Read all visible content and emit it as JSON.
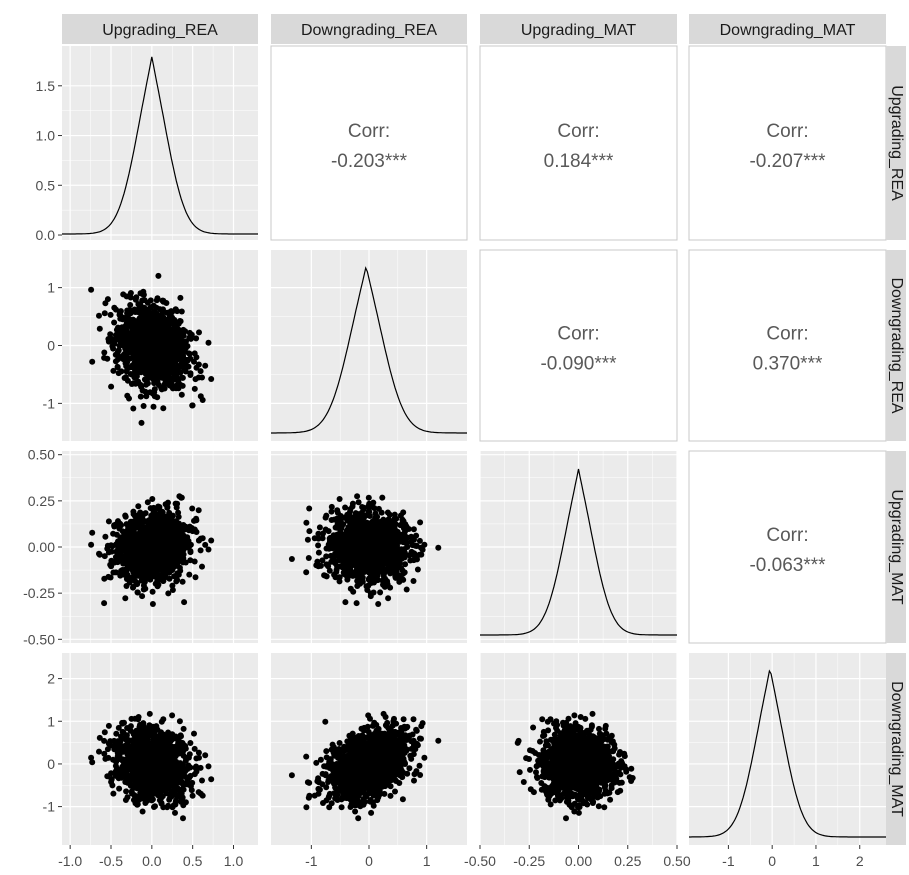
{
  "chart_data": {
    "type": "scatter-matrix",
    "variables": [
      "Upgrading_REA",
      "Downgrading_REA",
      "Upgrading_MAT",
      "Downgrading_MAT"
    ],
    "correlations": [
      {
        "row": 0,
        "col": 1,
        "label": "Corr:",
        "value": "-0.203***"
      },
      {
        "row": 0,
        "col": 2,
        "label": "Corr:",
        "value": "0.184***"
      },
      {
        "row": 0,
        "col": 3,
        "label": "Corr:",
        "value": "-0.207***"
      },
      {
        "row": 1,
        "col": 2,
        "label": "Corr:",
        "value": "-0.090***"
      },
      {
        "row": 1,
        "col": 3,
        "label": "Corr:",
        "value": "0.370***"
      },
      {
        "row": 2,
        "col": 3,
        "label": "Corr:",
        "value": "-0.063***"
      }
    ],
    "x_axes": [
      {
        "variable": "Upgrading_REA",
        "range": [
          -1.1,
          1.3
        ],
        "ticks": [
          -1.0,
          -0.5,
          0.0,
          0.5,
          1.0
        ],
        "tick_labels": [
          "-1.0",
          "-0.5",
          "0.0",
          "0.5",
          "1.0"
        ]
      },
      {
        "variable": "Downgrading_REA",
        "range": [
          -1.7,
          1.7
        ],
        "ticks": [
          -1,
          0,
          1
        ],
        "tick_labels": [
          "-1",
          "0",
          "1"
        ]
      },
      {
        "variable": "Upgrading_MAT",
        "range": [
          -0.5,
          0.5
        ],
        "ticks": [
          -0.5,
          -0.25,
          0.0,
          0.25,
          0.5
        ],
        "tick_labels": [
          "-0.50",
          "-0.25",
          "0.00",
          "0.25",
          "0.50"
        ]
      },
      {
        "variable": "Downgrading_MAT",
        "range": [
          -1.9,
          2.6
        ],
        "ticks": [
          -1,
          0,
          1,
          2
        ],
        "tick_labels": [
          "-1",
          "0",
          "1",
          "2"
        ]
      }
    ],
    "y_axes": [
      {
        "variable": "Upgrading_REA",
        "range": [
          -0.05,
          1.9
        ],
        "ticks": [
          0.0,
          0.5,
          1.0,
          1.5
        ],
        "tick_labels": [
          "0.0",
          "0.5",
          "1.0",
          "1.5"
        ],
        "note": "density scale"
      },
      {
        "variable": "Downgrading_REA",
        "range": [
          -1.65,
          1.65
        ],
        "ticks": [
          -1,
          0,
          1
        ],
        "tick_labels": [
          "-1",
          "0",
          "1"
        ]
      },
      {
        "variable": "Upgrading_MAT",
        "range": [
          -0.52,
          0.52
        ],
        "ticks": [
          -0.5,
          -0.25,
          0.0,
          0.25,
          0.5
        ],
        "tick_labels": [
          "-0.50",
          "-0.25",
          "0.00",
          "0.25",
          "0.50"
        ]
      },
      {
        "variable": "Downgrading_MAT",
        "range": [
          -1.9,
          2.6
        ],
        "ticks": [
          -1,
          0,
          1,
          2
        ],
        "tick_labels": [
          "-1",
          "0",
          "1",
          "2"
        ]
      }
    ],
    "marginals": [
      {
        "variable": "Upgrading_REA",
        "peak_x": 0.0,
        "peak_density": 1.78,
        "sd": 0.22
      },
      {
        "variable": "Downgrading_REA",
        "peak_x": -0.05,
        "sd": 0.35
      },
      {
        "variable": "Upgrading_MAT",
        "peak_x": 0.0,
        "sd": 0.07
      },
      {
        "variable": "Downgrading_MAT",
        "peak_x": -0.05,
        "sd": 0.4
      }
    ],
    "scatter": {
      "point_color": "#000000"
    },
    "grid": true,
    "colors": {
      "panel_background": "#ebebeb",
      "grid_major": "#ffffff",
      "strip_background": "#d9d9d9",
      "line": "#000000",
      "corr_text": "#595959"
    }
  }
}
